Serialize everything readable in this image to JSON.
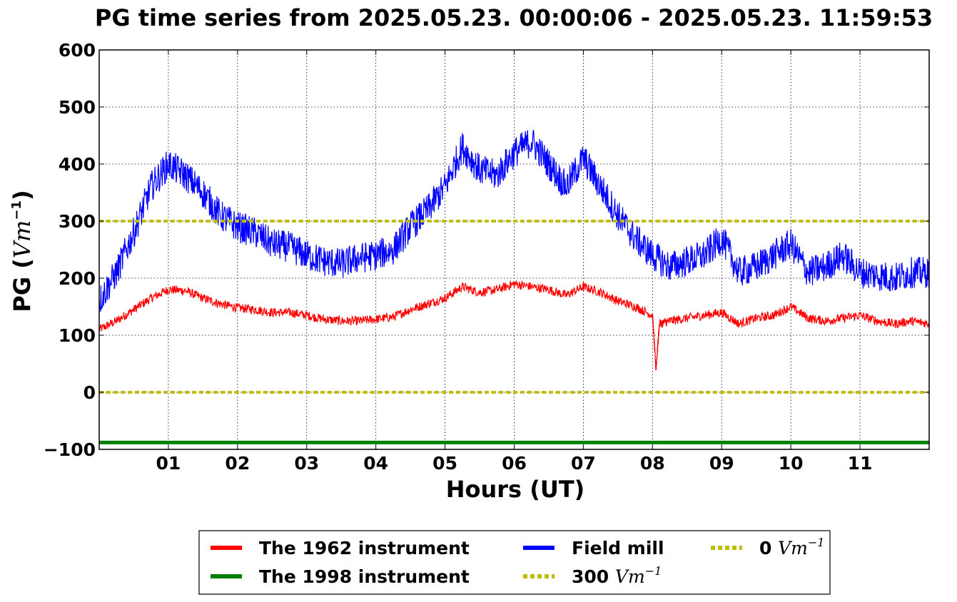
{
  "chart_data": {
    "type": "line",
    "title": "PG time series from 2025.05.23. 00:00:06 - 2025.05.23. 11:59:53",
    "xlabel": "Hours (UT)",
    "ylabel_prefix": "PG (",
    "ylabel_unit": "Vm",
    "ylabel_exp": "−1",
    "ylabel_suffix": ")",
    "xlim": [
      0,
      12
    ],
    "ylim": [
      -100,
      600
    ],
    "grid": true,
    "legend_position": "bottom-center",
    "x_ticks": [
      {
        "v": 1,
        "label": "01"
      },
      {
        "v": 2,
        "label": "02"
      },
      {
        "v": 3,
        "label": "03"
      },
      {
        "v": 4,
        "label": "04"
      },
      {
        "v": 5,
        "label": "05"
      },
      {
        "v": 6,
        "label": "06"
      },
      {
        "v": 7,
        "label": "07"
      },
      {
        "v": 8,
        "label": "08"
      },
      {
        "v": 9,
        "label": "09"
      },
      {
        "v": 10,
        "label": "10"
      },
      {
        "v": 11,
        "label": "11"
      }
    ],
    "y_ticks": [
      {
        "v": -100,
        "label": "−100"
      },
      {
        "v": 0,
        "label": "0"
      },
      {
        "v": 100,
        "label": "100"
      },
      {
        "v": 200,
        "label": "200"
      },
      {
        "v": 300,
        "label": "300"
      },
      {
        "v": 400,
        "label": "400"
      },
      {
        "v": 500,
        "label": "500"
      },
      {
        "v": 600,
        "label": "600"
      }
    ],
    "series": [
      {
        "name": "The 1962 instrument",
        "color": "#ff0000",
        "style": "solid",
        "x": [
          0,
          0.25,
          0.5,
          0.75,
          1.0,
          1.25,
          1.5,
          1.75,
          2.0,
          2.25,
          2.5,
          2.75,
          3.0,
          3.25,
          3.5,
          3.75,
          4.0,
          4.25,
          4.5,
          4.75,
          5.0,
          5.25,
          5.5,
          5.75,
          6.0,
          6.25,
          6.5,
          6.75,
          7.0,
          7.25,
          7.5,
          7.75,
          8.0,
          8.05,
          8.1,
          8.25,
          8.5,
          8.75,
          9.0,
          9.25,
          9.5,
          9.75,
          10.0,
          10.25,
          10.5,
          10.75,
          11.0,
          11.25,
          11.5,
          11.75,
          12.0
        ],
        "y": [
          110,
          125,
          145,
          165,
          180,
          178,
          165,
          155,
          148,
          145,
          140,
          140,
          135,
          128,
          125,
          125,
          128,
          132,
          145,
          155,
          165,
          185,
          175,
          180,
          190,
          185,
          180,
          170,
          185,
          175,
          160,
          150,
          135,
          40,
          120,
          125,
          130,
          135,
          140,
          120,
          130,
          135,
          150,
          130,
          125,
          130,
          135,
          125,
          120,
          125,
          120
        ]
      },
      {
        "name": "The 1998 instrument",
        "color": "#008000",
        "style": "solid",
        "x": [
          0,
          12
        ],
        "y": [
          -88,
          -88
        ]
      },
      {
        "name": "Field mill",
        "color": "#0000ff",
        "style": "solid",
        "x": [
          0,
          0.25,
          0.5,
          0.75,
          1.0,
          1.25,
          1.5,
          1.75,
          2.0,
          2.25,
          2.5,
          2.75,
          3.0,
          3.25,
          3.5,
          3.75,
          4.0,
          4.25,
          4.5,
          4.75,
          5.0,
          5.25,
          5.5,
          5.75,
          6.0,
          6.25,
          6.5,
          6.75,
          7.0,
          7.25,
          7.5,
          7.75,
          8.0,
          8.25,
          8.5,
          8.75,
          9.0,
          9.25,
          9.5,
          9.75,
          10.0,
          10.25,
          10.5,
          10.75,
          11.0,
          11.25,
          11.5,
          11.75,
          12.0
        ],
        "y": [
          160,
          210,
          280,
          360,
          400,
          380,
          350,
          310,
          290,
          280,
          260,
          255,
          240,
          230,
          225,
          235,
          240,
          250,
          290,
          320,
          360,
          430,
          390,
          380,
          420,
          440,
          400,
          360,
          410,
          360,
          310,
          270,
          240,
          220,
          230,
          240,
          270,
          210,
          220,
          240,
          260,
          210,
          220,
          240,
          210,
          205,
          200,
          210,
          210
        ]
      },
      {
        "name": "300 Vm⁻¹",
        "color": "#bfbf00",
        "style": "dotted",
        "x": [
          0,
          12
        ],
        "y": [
          300,
          300
        ]
      },
      {
        "name": "0 Vm⁻¹",
        "color": "#bfbf00",
        "style": "dotted",
        "x": [
          0,
          12
        ],
        "y": [
          0,
          0
        ]
      }
    ],
    "legend": [
      {
        "prefix": "The 1962 instrument",
        "unit": "",
        "exp": "",
        "color": "#ff0000",
        "style": "solid"
      },
      {
        "prefix": "Field mill",
        "unit": "",
        "exp": "",
        "color": "#0000ff",
        "style": "solid"
      },
      {
        "prefix": "0 ",
        "unit": "Vm",
        "exp": "−1",
        "color": "#bfbf00",
        "style": "dotted"
      },
      {
        "prefix": "The 1998 instrument",
        "unit": "",
        "exp": "",
        "color": "#008000",
        "style": "solid"
      },
      {
        "prefix": "300 ",
        "unit": "Vm",
        "exp": "−1",
        "color": "#bfbf00",
        "style": "dotted"
      }
    ]
  }
}
